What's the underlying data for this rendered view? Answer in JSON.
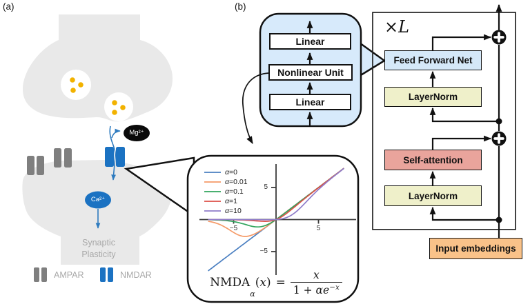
{
  "panels": {
    "a_label": "(a)",
    "b_label": "(b)"
  },
  "synapse": {
    "mg_label": "Mg²⁺",
    "ca_label": "Ca²⁺",
    "plasticity_line1": "Synaptic",
    "plasticity_line2": "Plasticity",
    "legend": {
      "ampar": "AMPAR",
      "nmdar": "NMDAR"
    },
    "colors": {
      "membrane": "#e9e9e9",
      "ampar": "#7f7f7f",
      "nmdar": "#1b72c2",
      "vesicle_dot": "#f2b200",
      "arrow": "#2e7bbf",
      "mg_fill": "#0a0a0a",
      "label_gray": "#a8a8a8"
    }
  },
  "ffn_bubble": {
    "top_box": "Linear",
    "middle_box": "Nonlinear Unit",
    "bottom_box": "Linear",
    "fill": "#d7eafb"
  },
  "transformer": {
    "repeat": {
      "times": "×",
      "var": "L"
    },
    "blocks": {
      "ffn": "Feed Forward Net",
      "layernorm_top": "LayerNorm",
      "self_attention": "Self-attention",
      "layernorm_bottom": "LayerNorm",
      "input": "Input embeddings"
    },
    "colors": {
      "ffn": "#d5e8f8",
      "layernorm": "#eff0ca",
      "self_attention": "#e9a49c",
      "input": "#f9c289"
    }
  },
  "chart_data": {
    "type": "line",
    "title": "",
    "xlabel": "",
    "ylabel": "",
    "formula": "NMDA_alpha(x) = x / (1 + alpha * e^(-x))",
    "x_domain": [
      -8,
      8
    ],
    "xlim": [
      -9.1,
      9.4
    ],
    "ylim": [
      -8.8,
      8.7
    ],
    "x_ticks": [
      -5,
      5
    ],
    "y_ticks": [
      -5,
      5
    ],
    "grid": false,
    "legend_position": "upper left",
    "series": [
      {
        "name": "α=0",
        "alpha": 0,
        "color": "#4a7fc1"
      },
      {
        "name": "α=0.01",
        "alpha": 0.01,
        "color": "#f59a67"
      },
      {
        "name": "α=0.1",
        "alpha": 0.1,
        "color": "#2fa45c"
      },
      {
        "name": "α=1",
        "alpha": 1,
        "color": "#dd4f47"
      },
      {
        "name": "α=10",
        "alpha": 10,
        "color": "#8f7cc9"
      }
    ],
    "tick_labels": {
      "x_neg": "−5",
      "x_pos": "5",
      "y_pos": "5",
      "y_neg": "−5"
    }
  },
  "formula": {
    "name": "NMDA",
    "sub": "α",
    "open": "(",
    "var": "x",
    "close": ")",
    "eq": "=",
    "num": "x",
    "den_pre": "1 + ",
    "den_var": "αe",
    "den_sup": "−x"
  }
}
